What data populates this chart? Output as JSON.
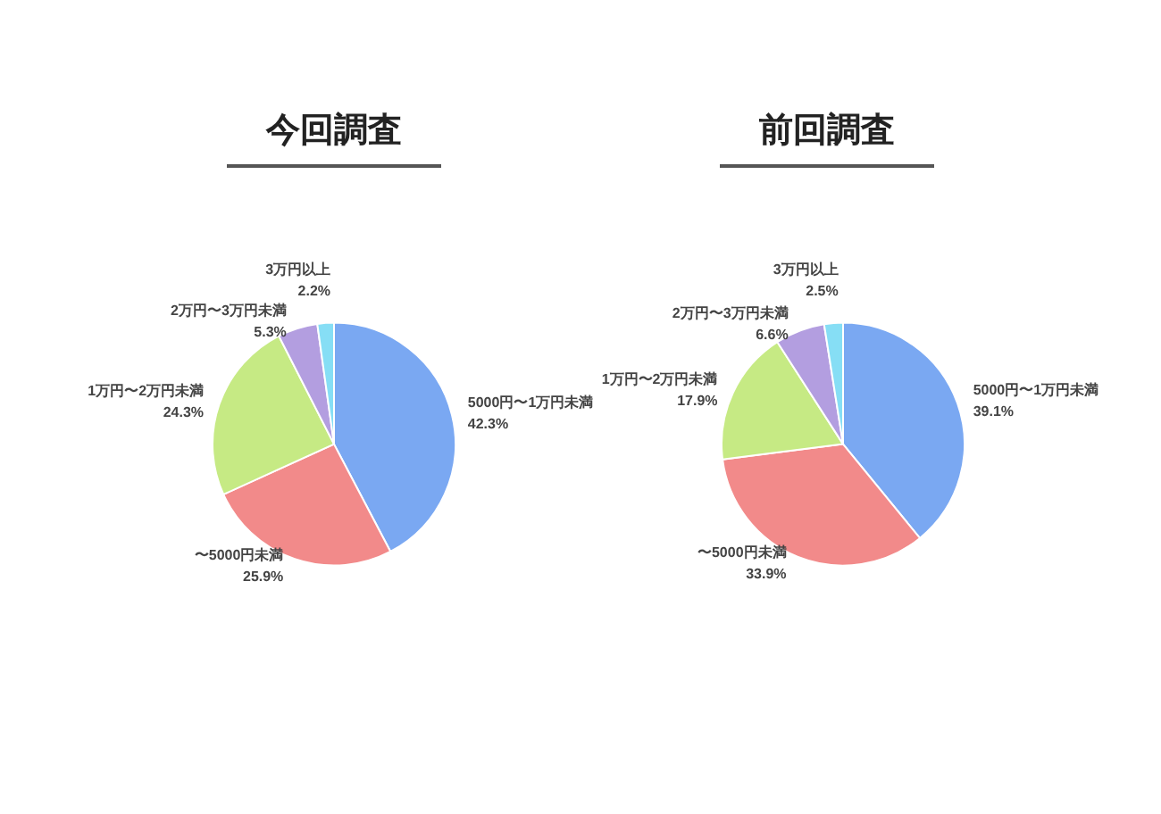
{
  "chart_data": [
    {
      "type": "pie",
      "title": "今回調査",
      "categories": [
        "5000円〜1万円未満",
        "〜5000円未満",
        "1万円〜2万円未満",
        "2万円〜3万円未満",
        "3万円以上"
      ],
      "values": [
        42.3,
        25.9,
        24.3,
        5.3,
        2.2
      ],
      "value_labels": [
        "42.3%",
        "25.9%",
        "24.3%",
        "5.3%",
        "2.2%"
      ],
      "colors": [
        "#7aa8f2",
        "#f28a8a",
        "#c6ea84",
        "#b39ee0",
        "#86def5"
      ],
      "legend": false
    },
    {
      "type": "pie",
      "title": "前回調査",
      "categories": [
        "5000円〜1万円未満",
        "〜5000円未満",
        "1万円〜2万円未満",
        "2万円〜3万円未満",
        "3万円以上"
      ],
      "values": [
        39.1,
        33.9,
        17.9,
        6.6,
        2.5
      ],
      "value_labels": [
        "39.1%",
        "33.9%",
        "17.9%",
        "6.6%",
        "2.5%"
      ],
      "colors": [
        "#7aa8f2",
        "#f28a8a",
        "#c6ea84",
        "#b39ee0",
        "#86def5"
      ],
      "legend": false
    }
  ]
}
